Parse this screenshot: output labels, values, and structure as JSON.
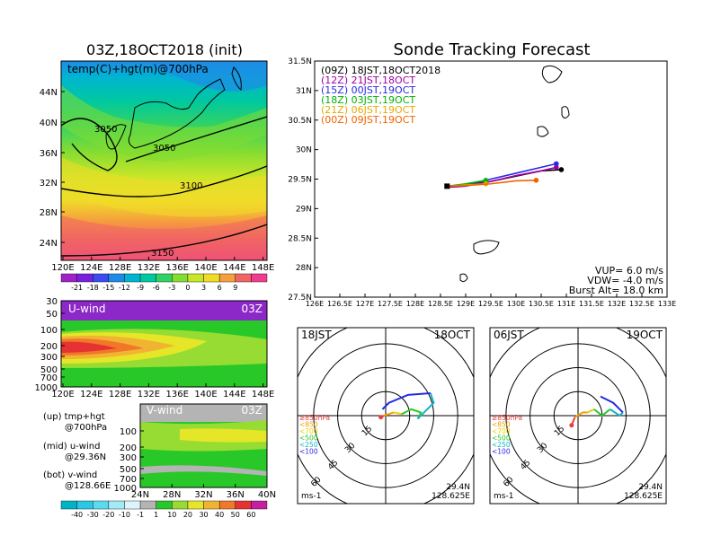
{
  "chart_data": [
    {
      "type": "heatmap",
      "title": "03Z,18OCT2018 (init)",
      "subtitle": "temp(C)+hgt(m)@700hPa",
      "x_ticks": [
        "120E",
        "124E",
        "128E",
        "132E",
        "136E",
        "140E",
        "144E",
        "148E"
      ],
      "y_ticks": [
        "24N",
        "28N",
        "32N",
        "36N",
        "40N",
        "44N"
      ],
      "contour_labels": [
        "3050",
        "3050",
        "3100",
        "3150"
      ],
      "colorbar_ticks": [
        "-21",
        "-18",
        "-15",
        "-12",
        "-9",
        "-6",
        "-3",
        "0",
        "3",
        "6",
        "9"
      ],
      "colorbar_colors": [
        "#a020c8",
        "#7820e0",
        "#3c4cf0",
        "#1e8ce6",
        "#00b4d2",
        "#00c8a0",
        "#32d264",
        "#82dc32",
        "#c8e628",
        "#f0dc28",
        "#f5a03c",
        "#f06464",
        "#f03c8c"
      ]
    },
    {
      "type": "line",
      "title": "Sonde Tracking Forecast",
      "xlim": [
        126,
        133
      ],
      "ylim": [
        27.5,
        31.5
      ],
      "x_ticks": [
        "126E",
        "126.5E",
        "127E",
        "127.5E",
        "128E",
        "128.5E",
        "129E",
        "129.5E",
        "130E",
        "130.5E",
        "131E",
        "131.5E",
        "132E",
        "132.5E",
        "133E"
      ],
      "y_ticks": [
        "27.5N",
        "28N",
        "28.5N",
        "29N",
        "29.5N",
        "30N",
        "30.5N",
        "31N",
        "31.5N"
      ],
      "series": [
        {
          "name": "(09Z)  18JST,18OCT2018",
          "color": "#000000",
          "x": [
            128.63,
            129.0,
            129.5,
            130.0,
            130.5,
            130.9
          ],
          "y": [
            29.38,
            29.4,
            29.46,
            29.55,
            29.64,
            29.66
          ]
        },
        {
          "name": "(12Z)  21JST,18OCT",
          "color": "#a000a0",
          "x": [
            128.63,
            129.0,
            129.5,
            130.0,
            130.5,
            130.8
          ],
          "y": [
            29.36,
            29.38,
            29.46,
            29.56,
            29.64,
            29.7
          ]
        },
        {
          "name": "(15Z)  00JST,19OCT",
          "color": "#2828e6",
          "x": [
            128.63,
            129.0,
            129.5,
            130.0,
            130.5,
            130.8
          ],
          "y": [
            29.38,
            29.4,
            29.5,
            29.6,
            29.7,
            29.76
          ]
        },
        {
          "name": "(18Z)  03JST,19OCT",
          "color": "#00b400",
          "x": [
            128.63,
            129.0,
            129.4
          ],
          "y": [
            29.38,
            29.42,
            29.48
          ]
        },
        {
          "name": "(21Z)  06JST,19OCT",
          "color": "#e6aa00",
          "x": [
            128.63,
            129.0,
            129.4
          ],
          "y": [
            29.38,
            29.4,
            29.42
          ]
        },
        {
          "name": "(00Z)  09JST,19OCT",
          "color": "#f06400",
          "x": [
            128.63,
            129.0,
            129.5,
            130.0,
            130.4
          ],
          "y": [
            29.38,
            29.39,
            29.42,
            29.47,
            29.48
          ]
        }
      ],
      "annotations": [
        "VUP=  6.0  m/s",
        "VDW= -4.0  m/s",
        "Burst Alt=  18.0  km"
      ]
    },
    {
      "type": "heatmap",
      "title": "U-wind",
      "time_label": "03Z",
      "x_ticks": [
        "120E",
        "124E",
        "128E",
        "132E",
        "136E",
        "140E",
        "144E",
        "148E"
      ],
      "y_ticks": [
        "30",
        "50",
        "100",
        "200",
        "300",
        "500",
        "700",
        "1000"
      ]
    },
    {
      "type": "heatmap",
      "title": "V-wind",
      "time_label": "03Z",
      "x_ticks": [
        "24N",
        "28N",
        "32N",
        "36N",
        "40N"
      ],
      "y_ticks": [
        "100",
        "200",
        "300",
        "500",
        "700",
        "1000"
      ],
      "colorbar_ticks": [
        "-40",
        "-30",
        "-20",
        "-10",
        "-1",
        "1",
        "10",
        "20",
        "30",
        "40",
        "50",
        "60"
      ],
      "colorbar_colors": [
        "#00b4c8",
        "#28c8e6",
        "#5adcf0",
        "#a0ebf5",
        "#dcf5fa",
        "#b4b4b4",
        "#28c828",
        "#96dc32",
        "#e6e628",
        "#f0b432",
        "#f07828",
        "#e63232",
        "#c81ea0"
      ]
    },
    {
      "type": "line",
      "title": "hodograph",
      "label_left": "18JST",
      "label_right": "18OCT",
      "lat": "29.4N",
      "lon": "128.625E",
      "unit": "ms-1",
      "ring_labels": [
        "15",
        "30",
        "45",
        "60"
      ],
      "layers": [
        "≥850hPa",
        "<850",
        "<700",
        "<500",
        "<250",
        "<100"
      ],
      "series": [
        {
          "name": "≥850hPa",
          "color": "#f03c3c",
          "u": [
            -3,
            -1
          ],
          "v": [
            -1,
            0
          ]
        },
        {
          "name": "<850",
          "color": "#f0a000",
          "u": [
            -1,
            2,
            5
          ],
          "v": [
            0,
            1,
            2
          ]
        },
        {
          "name": "<700",
          "color": "#e6d200",
          "u": [
            5,
            10
          ],
          "v": [
            2,
            1
          ]
        },
        {
          "name": "<500",
          "color": "#28c828",
          "u": [
            10,
            16,
            22,
            20
          ],
          "v": [
            1,
            4,
            2,
            -2
          ]
        },
        {
          "name": "<250",
          "color": "#14b4c8",
          "u": [
            20,
            30,
            28
          ],
          "v": [
            -2,
            8,
            14
          ]
        },
        {
          "name": "<100",
          "color": "#2828e6",
          "u": [
            28,
            14,
            2,
            -2
          ],
          "v": [
            14,
            13,
            8,
            4
          ]
        }
      ]
    },
    {
      "type": "line",
      "title": "hodograph",
      "label_left": "06JST",
      "label_right": "19OCT",
      "lat": "29.4N",
      "lon": "128.625E",
      "unit": "ms-1",
      "ring_labels": [
        "15",
        "30",
        "45",
        "60"
      ],
      "layers": [
        "≥850hPa",
        "<850",
        "<700",
        "<500",
        "<250",
        "<100"
      ],
      "series": [
        {
          "name": "≥850hPa",
          "color": "#f03c3c",
          "u": [
            -4,
            -2
          ],
          "v": [
            -6,
            -1
          ]
        },
        {
          "name": "<850",
          "color": "#f0a000",
          "u": [
            -2,
            3,
            6
          ],
          "v": [
            -1,
            2,
            2
          ]
        },
        {
          "name": "<700",
          "color": "#e6d200",
          "u": [
            6,
            10
          ],
          "v": [
            2,
            4
          ]
        },
        {
          "name": "<500",
          "color": "#28c828",
          "u": [
            10,
            15,
            20
          ],
          "v": [
            4,
            0,
            4
          ]
        },
        {
          "name": "<250",
          "color": "#14b4c8",
          "u": [
            20,
            26,
            28
          ],
          "v": [
            4,
            0,
            2
          ]
        },
        {
          "name": "<100",
          "color": "#2828e6",
          "u": [
            28,
            22,
            14
          ],
          "v": [
            2,
            8,
            12
          ]
        }
      ]
    }
  ],
  "legend_text": {
    "up": "(up) tmp+hgt",
    "up2": "@700hPa",
    "mid": "(mid) u-wind",
    "mid2": "@29.36N",
    "bot": "(bot) v-wind",
    "bot2": "@128.66E"
  }
}
